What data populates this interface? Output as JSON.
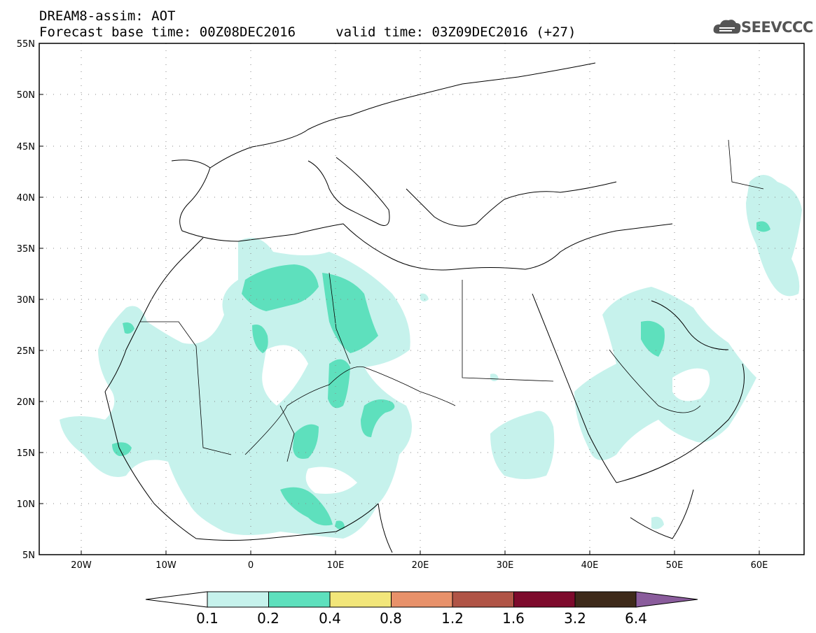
{
  "header": {
    "title_line1": "DREAM8-assim: AOT",
    "title_line2": "Forecast base time: 00Z08DEC2016     valid time: 03Z09DEC2016 (+27)"
  },
  "logo": {
    "text": "SEEVCCC",
    "icon": "cloud-icon"
  },
  "map": {
    "lat_labels": [
      "55N",
      "50N",
      "45N",
      "40N",
      "35N",
      "30N",
      "25N",
      "20N",
      "15N",
      "10N",
      "5N"
    ],
    "lon_labels": [
      "20W",
      "10W",
      "0",
      "10E",
      "20E",
      "30E",
      "40E",
      "50E",
      "60E"
    ],
    "lat_range": [
      5,
      55
    ],
    "lon_range": [
      -25,
      65
    ],
    "grid": "dotted"
  },
  "colorbar": {
    "labels": [
      "0.1",
      "0.2",
      "0.4",
      "0.8",
      "1.2",
      "1.6",
      "3.2",
      "6.4"
    ],
    "colors": [
      "#ffffff",
      "#c6f2ec",
      "#5ee0bd",
      "#f2e67a",
      "#e8916a",
      "#b05446",
      "#7d0a2c",
      "#3e2a1a",
      "#8a5c9c"
    ]
  }
}
